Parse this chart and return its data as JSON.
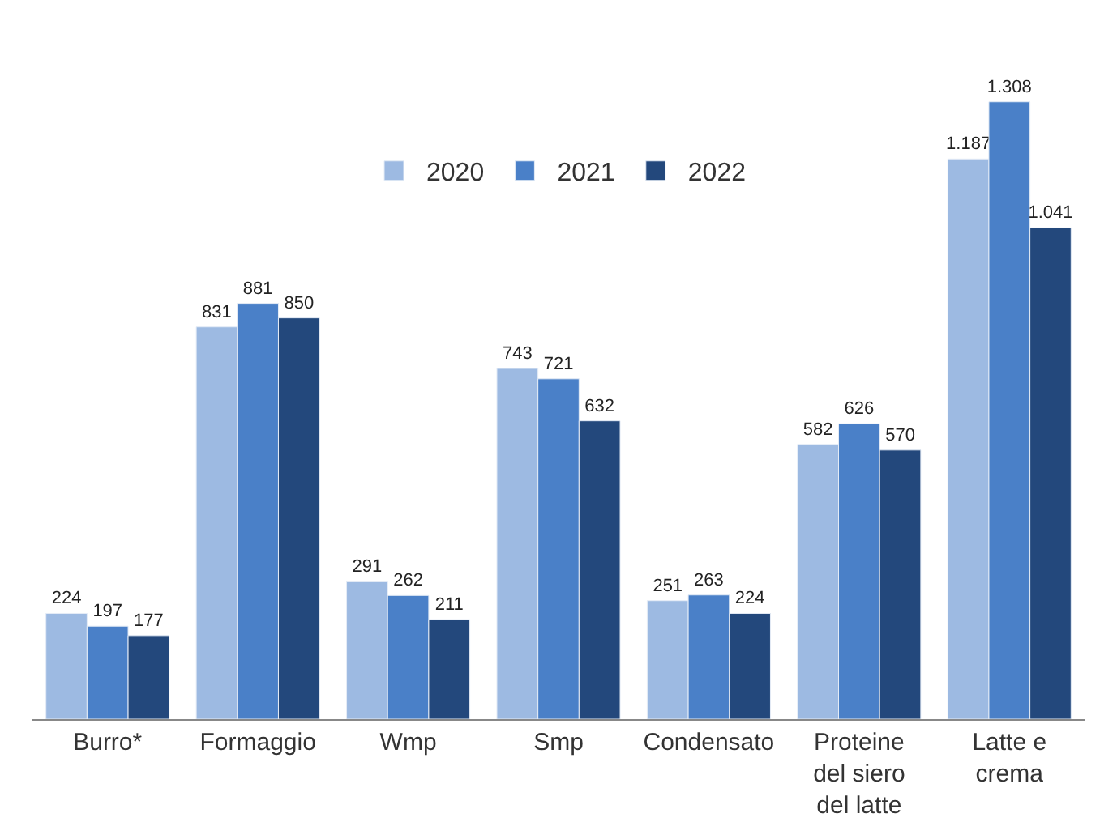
{
  "chart_data": {
    "type": "bar",
    "categories": [
      "Burro*",
      "Formaggio",
      "Wmp",
      "Smp",
      "Condensato",
      "Proteine del siero del latte",
      "Latte e crema"
    ],
    "series": [
      {
        "name": "2020",
        "color": "#9dbae2",
        "values": [
          224,
          831,
          291,
          743,
          251,
          582,
          1187
        ],
        "value_labels": [
          "224",
          "831",
          "291",
          "743",
          "251",
          "582",
          "1.187"
        ]
      },
      {
        "name": "2021",
        "color": "#4a80c8",
        "values": [
          197,
          881,
          262,
          721,
          263,
          626,
          1308
        ],
        "value_labels": [
          "197",
          "881",
          "262",
          "721",
          "263",
          "626",
          "1.308"
        ]
      },
      {
        "name": "2022",
        "color": "#23487c",
        "values": [
          177,
          850,
          211,
          632,
          224,
          570,
          1041
        ],
        "value_labels": [
          "177",
          "850",
          "211",
          "632",
          "224",
          "570",
          "1.041"
        ]
      }
    ],
    "legend": "top",
    "tick_labels": "x"
  }
}
